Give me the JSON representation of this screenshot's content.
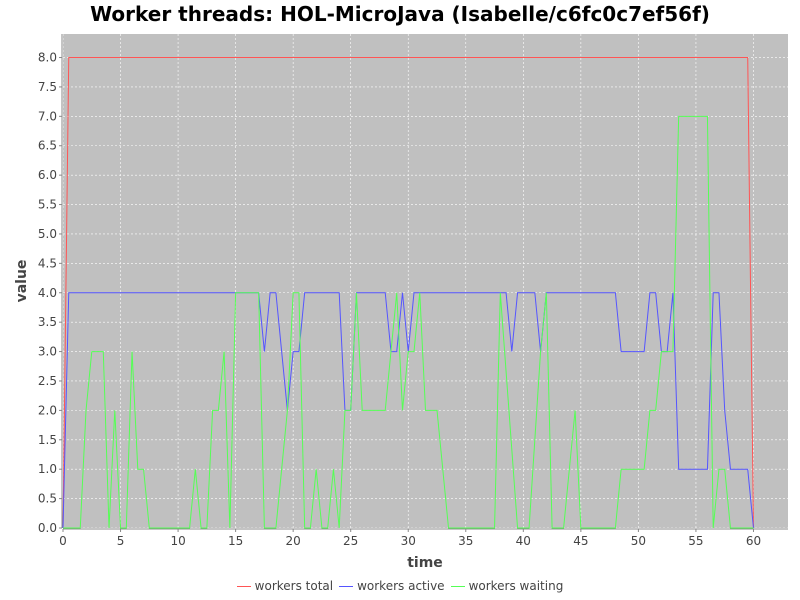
{
  "chart_data": {
    "type": "line",
    "title": "Worker threads: HOL-MicroJava (Isabelle/c6fc0c7ef56f)",
    "xlabel": "time",
    "ylabel": "value",
    "xlim": [
      0,
      63
    ],
    "ylim": [
      0,
      8.4
    ],
    "xticks": [
      0,
      5,
      10,
      15,
      20,
      25,
      30,
      35,
      40,
      45,
      50,
      55,
      60
    ],
    "yticks": [
      0.0,
      0.5,
      1.0,
      1.5,
      2.0,
      2.5,
      3.0,
      3.5,
      4.0,
      4.5,
      5.0,
      5.5,
      6.0,
      6.5,
      7.0,
      7.5,
      8.0
    ],
    "grid": true,
    "legend_position": "bottom",
    "background": "#c0c0c0",
    "series": [
      {
        "name": "workers total",
        "color": "#ff5555",
        "points": [
          [
            0,
            0
          ],
          [
            0.5,
            8
          ],
          [
            59.5,
            8
          ],
          [
            60,
            0
          ]
        ]
      },
      {
        "name": "workers active",
        "color": "#5555ff",
        "points": [
          [
            0,
            0
          ],
          [
            0.5,
            4
          ],
          [
            17,
            4
          ],
          [
            17.5,
            3
          ],
          [
            18,
            4
          ],
          [
            18.5,
            4
          ],
          [
            19.5,
            2
          ],
          [
            20,
            3
          ],
          [
            20.5,
            3
          ],
          [
            21,
            4
          ],
          [
            24,
            4
          ],
          [
            24.5,
            2
          ],
          [
            25,
            2
          ],
          [
            25.5,
            4
          ],
          [
            28,
            4
          ],
          [
            28.5,
            3
          ],
          [
            29,
            3
          ],
          [
            29.5,
            4
          ],
          [
            30,
            3
          ],
          [
            30.5,
            4
          ],
          [
            38.5,
            4
          ],
          [
            39,
            3
          ],
          [
            39.5,
            4
          ],
          [
            41,
            4
          ],
          [
            41.5,
            3
          ],
          [
            42,
            4
          ],
          [
            48,
            4
          ],
          [
            48.5,
            3
          ],
          [
            50.5,
            3
          ],
          [
            51,
            4
          ],
          [
            51.5,
            4
          ],
          [
            52,
            3
          ],
          [
            52.5,
            3
          ],
          [
            53,
            4
          ],
          [
            53.5,
            1
          ],
          [
            56,
            1
          ],
          [
            56.5,
            4
          ],
          [
            57,
            4
          ],
          [
            57.5,
            2
          ],
          [
            58,
            1
          ],
          [
            59.5,
            1
          ],
          [
            60,
            0
          ]
        ]
      },
      {
        "name": "workers waiting",
        "color": "#55ff55",
        "points": [
          [
            0,
            0
          ],
          [
            1.5,
            0
          ],
          [
            2,
            2
          ],
          [
            2.5,
            3
          ],
          [
            3.5,
            3
          ],
          [
            4,
            0
          ],
          [
            4.5,
            2
          ],
          [
            5,
            0
          ],
          [
            5.5,
            0
          ],
          [
            6,
            3
          ],
          [
            6.5,
            1
          ],
          [
            7,
            1
          ],
          [
            7.5,
            0
          ],
          [
            11,
            0
          ],
          [
            11.5,
            1
          ],
          [
            12,
            0
          ],
          [
            12.5,
            0
          ],
          [
            13,
            2
          ],
          [
            13.5,
            2
          ],
          [
            14,
            3
          ],
          [
            14.5,
            0
          ],
          [
            15,
            4
          ],
          [
            17,
            4
          ],
          [
            17.5,
            0
          ],
          [
            18,
            0
          ],
          [
            18.5,
            0
          ],
          [
            19.5,
            2
          ],
          [
            20,
            4
          ],
          [
            20.5,
            4
          ],
          [
            21,
            0
          ],
          [
            21.5,
            0
          ],
          [
            22,
            1
          ],
          [
            22.5,
            0
          ],
          [
            23,
            0
          ],
          [
            23.5,
            1
          ],
          [
            24,
            0
          ],
          [
            24.5,
            2
          ],
          [
            25,
            2
          ],
          [
            25.5,
            4
          ],
          [
            26,
            2
          ],
          [
            28,
            2
          ],
          [
            29,
            4
          ],
          [
            29.5,
            2
          ],
          [
            30,
            3
          ],
          [
            30.5,
            3
          ],
          [
            31,
            4
          ],
          [
            31.5,
            2
          ],
          [
            32.5,
            2
          ],
          [
            33.5,
            0
          ],
          [
            37.5,
            0
          ],
          [
            38,
            4
          ],
          [
            39.5,
            0
          ],
          [
            40.5,
            0
          ],
          [
            41.5,
            3
          ],
          [
            42,
            4
          ],
          [
            42.5,
            0
          ],
          [
            43.5,
            0
          ],
          [
            44.5,
            2
          ],
          [
            45,
            0
          ],
          [
            48,
            0
          ],
          [
            48.5,
            1
          ],
          [
            50.5,
            1
          ],
          [
            51,
            2
          ],
          [
            51.5,
            2
          ],
          [
            52,
            3
          ],
          [
            53,
            3
          ],
          [
            53.5,
            7
          ],
          [
            56,
            7
          ],
          [
            56.5,
            0
          ],
          [
            57,
            1
          ],
          [
            57.5,
            1
          ],
          [
            58,
            0
          ],
          [
            60,
            0
          ]
        ]
      }
    ]
  }
}
